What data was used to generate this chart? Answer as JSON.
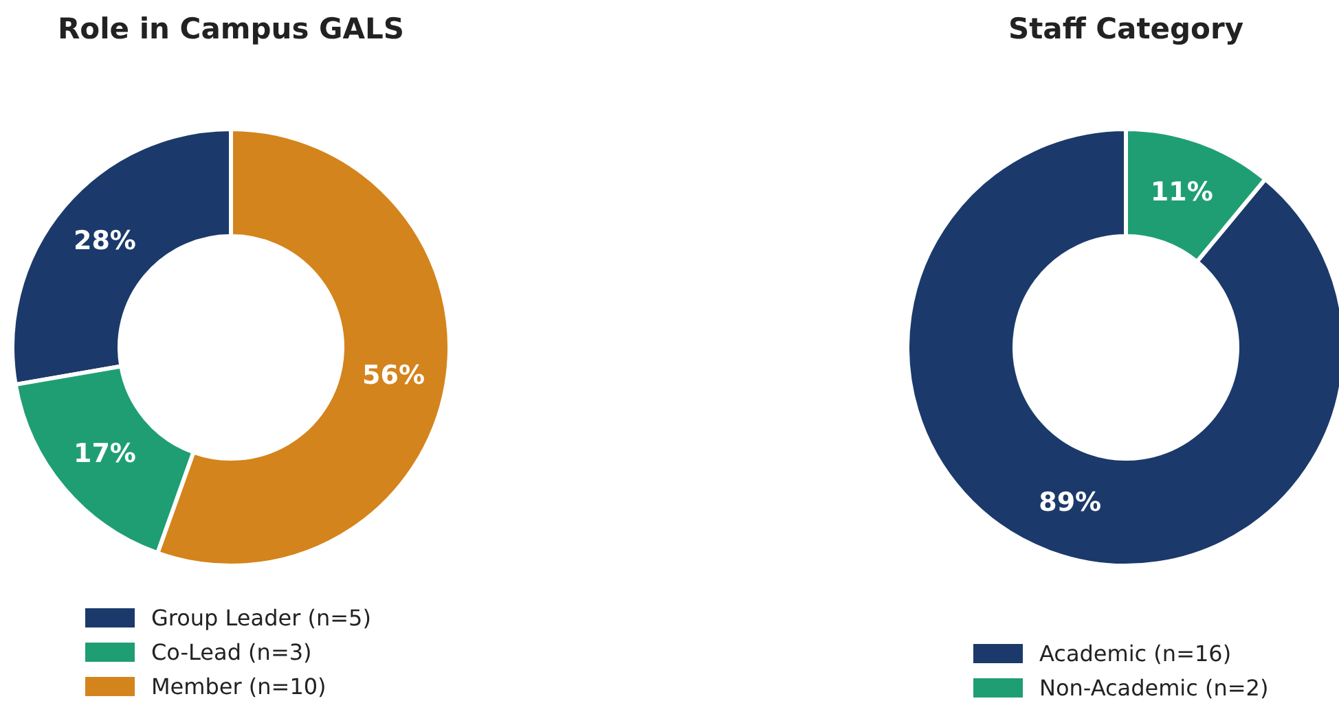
{
  "chart_data": [
    {
      "type": "donut",
      "title": "Role in Campus GALS",
      "categories": [
        "Group Leader (n=5)",
        "Co-Lead (n=3)",
        "Member (n=10)"
      ],
      "values": [
        28,
        17,
        56
      ],
      "colors": [
        "#1b3a6b",
        "#1f9e74",
        "#d4841c"
      ],
      "value_labels": [
        "28%",
        "17%",
        "56%"
      ],
      "legend": "bottom"
    },
    {
      "type": "donut",
      "title": "Staff Category",
      "categories": [
        "Academic (n=16)",
        "Non-Academic (n=2)"
      ],
      "values": [
        89,
        11
      ],
      "colors": [
        "#1b3a6b",
        "#1f9e74"
      ],
      "value_labels": [
        "89%",
        "11%"
      ],
      "legend": "bottom"
    }
  ]
}
